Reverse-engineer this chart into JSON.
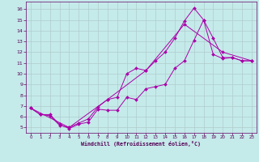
{
  "xlabel": "Windchill (Refroidissement éolien,°C)",
  "bg_color": "#c5eaea",
  "grid_color": "#b0cccc",
  "line_color": "#aa00aa",
  "xlim": [
    -0.5,
    23.5
  ],
  "ylim": [
    4.5,
    16.7
  ],
  "xticks": [
    0,
    1,
    2,
    3,
    4,
    5,
    6,
    7,
    8,
    9,
    10,
    11,
    12,
    13,
    14,
    15,
    16,
    17,
    18,
    19,
    20,
    21,
    22,
    23
  ],
  "yticks": [
    5,
    6,
    7,
    8,
    9,
    10,
    11,
    12,
    13,
    14,
    15,
    16
  ],
  "line1_x": [
    0,
    1,
    2,
    3,
    4,
    5,
    6,
    7,
    8,
    9,
    10,
    11,
    12,
    13,
    14,
    15,
    16,
    17,
    18,
    19,
    20,
    21,
    22,
    23
  ],
  "line1_y": [
    6.8,
    6.2,
    6.2,
    5.3,
    4.9,
    5.3,
    5.5,
    6.7,
    6.6,
    6.6,
    7.8,
    7.6,
    8.6,
    8.8,
    9.0,
    10.5,
    11.2,
    13.1,
    15.0,
    13.3,
    11.5,
    11.5,
    11.2,
    11.2
  ],
  "line2_x": [
    0,
    1,
    2,
    3,
    4,
    5,
    6,
    7,
    8,
    9,
    10,
    11,
    12,
    13,
    14,
    15,
    16,
    17,
    18,
    19,
    20,
    21,
    22,
    23
  ],
  "line2_y": [
    6.8,
    6.2,
    6.1,
    5.2,
    5.0,
    5.4,
    5.8,
    6.9,
    7.6,
    7.8,
    10.0,
    10.5,
    10.3,
    11.2,
    12.0,
    13.3,
    14.9,
    16.1,
    15.0,
    11.8,
    11.4,
    11.5,
    11.2,
    11.2
  ],
  "line3_x": [
    0,
    4,
    8,
    12,
    16,
    20,
    23
  ],
  "line3_y": [
    6.8,
    5.0,
    7.6,
    10.3,
    14.6,
    12.0,
    11.2
  ]
}
